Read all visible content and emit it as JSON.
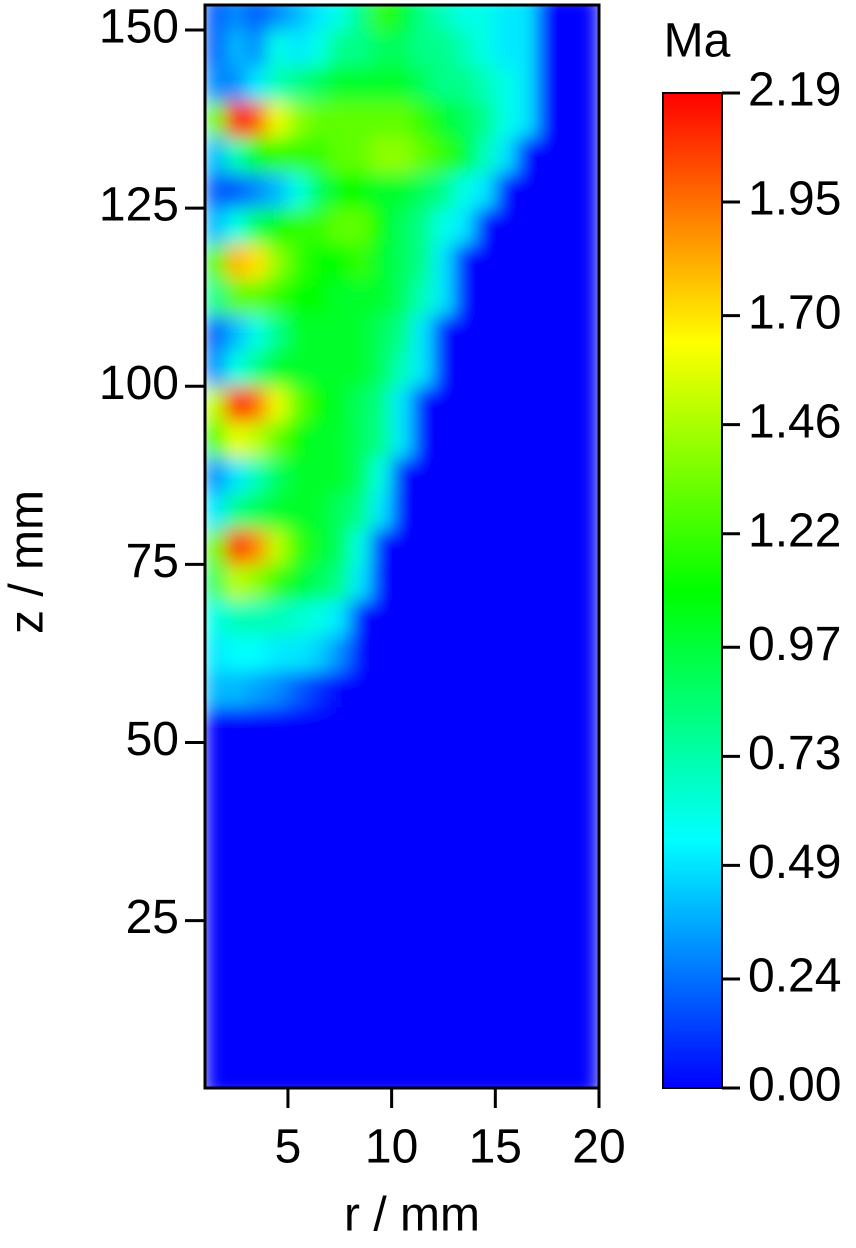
{
  "chart_data": {
    "type": "heatmap",
    "xlabel": "r / mm",
    "ylabel": "z / mm",
    "colorbar_label": "Ma",
    "xlim": [
      1,
      20
    ],
    "ylim": [
      1.5,
      153.5
    ],
    "xticks": [
      5,
      10,
      15,
      20
    ],
    "yticks": [
      25,
      50,
      75,
      100,
      125,
      150
    ],
    "clim": [
      0,
      2.19
    ],
    "cticks": [
      {
        "value": 0,
        "label": "0.00"
      },
      0.24,
      0.49,
      0.73,
      0.97,
      1.22,
      1.46,
      {
        "value": 1.7,
        "label": "1.70"
      },
      1.95,
      2.19
    ],
    "colormap": [
      "#0000ff",
      "#00ffff",
      "#00ff00",
      "#ffff00",
      "#ff0000"
    ],
    "x": [
      1.5,
      2.5,
      3.5,
      4.5,
      5.5,
      6.5,
      7.5,
      8.5,
      9.5,
      10.5,
      11.5,
      12.5,
      13.5,
      14.5,
      15.5,
      16.5,
      17.5,
      18.5,
      19.5
    ],
    "y": [
      2.5,
      7.5,
      12.5,
      17.5,
      22.5,
      27.5,
      32.5,
      37.5,
      42.5,
      47.5,
      52.5,
      57.5,
      62.5,
      67.5,
      72.5,
      77.5,
      82.5,
      87.5,
      92.5,
      97.5,
      102.5,
      107.5,
      112.5,
      117.5,
      122.5,
      127.5,
      132.5,
      137.5,
      142.5,
      147.5,
      152.5
    ],
    "z": [
      [
        0,
        0,
        0,
        0,
        0,
        0,
        0,
        0,
        0,
        0,
        0,
        0,
        0,
        0,
        0,
        0,
        0,
        0,
        0
      ],
      [
        0,
        0,
        0,
        0,
        0,
        0,
        0,
        0,
        0,
        0,
        0,
        0,
        0,
        0,
        0,
        0,
        0,
        0,
        0
      ],
      [
        0,
        0,
        0,
        0,
        0,
        0,
        0,
        0,
        0,
        0,
        0,
        0,
        0,
        0,
        0,
        0,
        0,
        0,
        0
      ],
      [
        0,
        0,
        0,
        0,
        0,
        0,
        0,
        0,
        0,
        0,
        0,
        0,
        0,
        0,
        0,
        0,
        0,
        0,
        0
      ],
      [
        0,
        0,
        0,
        0,
        0,
        0,
        0,
        0,
        0,
        0,
        0,
        0,
        0,
        0,
        0,
        0,
        0,
        0,
        0
      ],
      [
        0,
        0,
        0,
        0,
        0,
        0,
        0,
        0,
        0,
        0,
        0,
        0,
        0,
        0,
        0,
        0,
        0,
        0,
        0
      ],
      [
        0,
        0,
        0,
        0,
        0,
        0,
        0,
        0,
        0,
        0,
        0,
        0,
        0,
        0,
        0,
        0,
        0,
        0,
        0
      ],
      [
        0,
        0,
        0,
        0,
        0,
        0,
        0,
        0,
        0,
        0,
        0,
        0,
        0,
        0,
        0,
        0,
        0,
        0,
        0
      ],
      [
        0,
        0,
        0,
        0,
        0,
        0,
        0,
        0,
        0,
        0,
        0,
        0,
        0,
        0,
        0,
        0,
        0,
        0,
        0
      ],
      [
        0,
        0,
        0,
        0,
        0,
        0,
        0,
        0,
        0,
        0,
        0,
        0,
        0,
        0,
        0,
        0,
        0,
        0,
        0
      ],
      [
        0,
        0,
        0,
        0,
        0,
        0,
        0,
        0,
        0,
        0,
        0,
        0,
        0,
        0,
        0,
        0,
        0,
        0,
        0
      ],
      [
        0.4,
        0.4,
        0.35,
        0.3,
        0.2,
        0.1,
        0,
        0,
        0,
        0,
        0,
        0,
        0,
        0,
        0,
        0,
        0,
        0,
        0
      ],
      [
        0.5,
        0.55,
        0.55,
        0.5,
        0.5,
        0.45,
        0.3,
        0,
        0,
        0,
        0,
        0,
        0,
        0,
        0,
        0,
        0,
        0,
        0
      ],
      [
        0.6,
        0.7,
        0.7,
        0.7,
        0.65,
        0.6,
        0.5,
        0,
        0,
        0,
        0,
        0,
        0,
        0,
        0,
        0,
        0,
        0,
        0
      ],
      [
        0.9,
        1.5,
        1.4,
        1.2,
        1.0,
        0.9,
        0.8,
        0.5,
        0,
        0,
        0,
        0,
        0,
        0,
        0,
        0,
        0,
        0,
        0
      ],
      [
        1.3,
        2.1,
        1.9,
        1.5,
        1.2,
        1.0,
        0.9,
        0.6,
        0,
        0,
        0,
        0,
        0,
        0,
        0,
        0,
        0,
        0,
        0
      ],
      [
        0.5,
        0.8,
        0.9,
        1.0,
        1.0,
        1.0,
        0.9,
        0.8,
        0.5,
        0,
        0,
        0,
        0,
        0,
        0,
        0,
        0,
        0,
        0
      ],
      [
        0.3,
        0.5,
        0.7,
        0.9,
        1.0,
        1.0,
        1.0,
        0.9,
        0.6,
        0,
        0,
        0,
        0,
        0,
        0,
        0,
        0,
        0,
        0
      ],
      [
        1.2,
        1.6,
        1.5,
        1.3,
        1.1,
        1.0,
        1.0,
        0.9,
        0.8,
        0.5,
        0,
        0,
        0,
        0,
        0,
        0,
        0,
        0,
        0
      ],
      [
        1.5,
        2.15,
        1.95,
        1.6,
        1.3,
        1.1,
        1.0,
        0.9,
        0.8,
        0.5,
        0,
        0,
        0,
        0,
        0,
        0,
        0,
        0,
        0
      ],
      [
        0.3,
        0.6,
        0.8,
        1.0,
        1.0,
        1.0,
        1.0,
        1.0,
        0.9,
        0.7,
        0.5,
        0,
        0,
        0,
        0,
        0,
        0,
        0,
        0
      ],
      [
        0.2,
        0.4,
        0.6,
        0.8,
        1.0,
        1.0,
        1.0,
        1.0,
        0.9,
        0.8,
        0.5,
        0,
        0,
        0,
        0,
        0,
        0,
        0,
        0
      ],
      [
        0.8,
        1.3,
        1.3,
        1.2,
        1.1,
        1.1,
        1.0,
        1.0,
        1.0,
        0.9,
        0.7,
        0.5,
        0,
        0,
        0,
        0,
        0,
        0,
        0
      ],
      [
        1.2,
        1.8,
        1.7,
        1.4,
        1.2,
        1.1,
        1.1,
        1.2,
        1.0,
        0.9,
        0.8,
        0.5,
        0,
        0,
        0,
        0,
        0,
        0,
        0
      ],
      [
        0.4,
        0.6,
        0.9,
        1.1,
        1.2,
        1.2,
        1.3,
        1.3,
        1.1,
        0.9,
        0.8,
        0.6,
        0.5,
        0,
        0,
        0,
        0,
        0,
        0
      ],
      [
        0.2,
        0.2,
        0.3,
        0.4,
        0.6,
        0.9,
        1.1,
        1.1,
        1.0,
        1.0,
        0.9,
        0.8,
        0.6,
        0.5,
        0,
        0,
        0,
        0,
        0
      ],
      [
        0.4,
        0.7,
        1.1,
        1.2,
        1.2,
        1.2,
        1.3,
        1.3,
        1.4,
        1.4,
        1.3,
        1.2,
        1.0,
        0.7,
        0.5,
        0,
        0,
        0,
        0
      ],
      [
        1.3,
        2.19,
        2.0,
        1.6,
        1.4,
        1.3,
        1.3,
        1.3,
        1.3,
        1.3,
        1.2,
        1.0,
        0.9,
        0.8,
        0.6,
        0.5,
        0,
        0,
        0
      ],
      [
        0.3,
        0.3,
        0.5,
        0.7,
        0.8,
        0.9,
        1.0,
        1.0,
        1.0,
        1.0,
        0.9,
        0.8,
        0.8,
        0.7,
        0.6,
        0.5,
        0,
        0,
        0
      ],
      [
        0.2,
        0.4,
        0.3,
        0.6,
        0.5,
        0.6,
        0.8,
        0.8,
        0.9,
        0.9,
        0.8,
        0.8,
        0.7,
        0.6,
        0.5,
        0.5,
        0,
        0,
        0
      ],
      [
        0.2,
        0.3,
        0.2,
        0.3,
        0.4,
        0.5,
        0.6,
        0.8,
        1.2,
        1.0,
        0.8,
        0.7,
        0.6,
        0.6,
        0.5,
        0.5,
        0,
        0,
        0
      ]
    ]
  }
}
